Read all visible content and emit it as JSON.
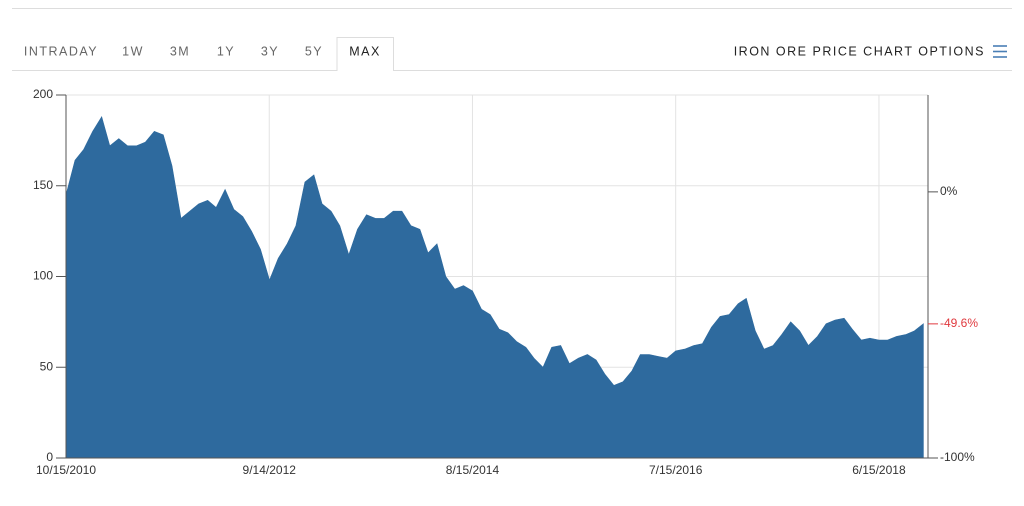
{
  "tabs": [
    "INTRADAY",
    "1W",
    "3M",
    "1Y",
    "3Y",
    "5Y",
    "MAX"
  ],
  "active_tab": 6,
  "options_label": "IRON ORE PRICE CHART OPTIONS",
  "chart_data": {
    "type": "area",
    "color": "#2e6a9e",
    "grid": true,
    "x": [
      "2010-10-15",
      "2010-11-15",
      "2010-12-15",
      "2011-01-15",
      "2011-02-15",
      "2011-03-15",
      "2011-04-15",
      "2011-05-15",
      "2011-06-15",
      "2011-07-15",
      "2011-08-15",
      "2011-09-15",
      "2011-10-15",
      "2011-11-15",
      "2011-12-15",
      "2012-01-15",
      "2012-02-15",
      "2012-03-15",
      "2012-04-15",
      "2012-05-15",
      "2012-06-15",
      "2012-07-15",
      "2012-08-15",
      "2012-09-15",
      "2012-10-15",
      "2012-11-15",
      "2012-12-15",
      "2013-01-15",
      "2013-02-15",
      "2013-03-15",
      "2013-04-15",
      "2013-05-15",
      "2013-06-15",
      "2013-07-15",
      "2013-08-15",
      "2013-09-15",
      "2013-10-15",
      "2013-11-15",
      "2013-12-15",
      "2014-01-15",
      "2014-02-15",
      "2014-03-15",
      "2014-04-15",
      "2014-05-15",
      "2014-06-15",
      "2014-07-15",
      "2014-08-15",
      "2014-09-15",
      "2014-10-15",
      "2014-11-15",
      "2014-12-15",
      "2015-01-15",
      "2015-02-15",
      "2015-03-15",
      "2015-04-15",
      "2015-05-15",
      "2015-06-15",
      "2015-07-15",
      "2015-08-15",
      "2015-09-15",
      "2015-10-15",
      "2015-11-15",
      "2015-12-15",
      "2016-01-15",
      "2016-02-15",
      "2016-03-15",
      "2016-04-15",
      "2016-05-15",
      "2016-06-15",
      "2016-07-15",
      "2016-08-15",
      "2016-09-15",
      "2016-10-15",
      "2016-11-15",
      "2016-12-15",
      "2017-01-15",
      "2017-02-15",
      "2017-03-15",
      "2017-04-15",
      "2017-05-15",
      "2017-06-15",
      "2017-07-15",
      "2017-08-15",
      "2017-09-15",
      "2017-10-15",
      "2017-11-15",
      "2017-12-15",
      "2018-01-15",
      "2018-02-15",
      "2018-03-15",
      "2018-04-15",
      "2018-05-15",
      "2018-06-15",
      "2018-07-15",
      "2018-08-15",
      "2018-09-15",
      "2018-10-15",
      "2018-11-15"
    ],
    "values": [
      145,
      164,
      170,
      180,
      188,
      172,
      176,
      172,
      172,
      174,
      180,
      178,
      161,
      132,
      136,
      140,
      142,
      138,
      148,
      137,
      133,
      125,
      115,
      98,
      110,
      118,
      128,
      152,
      156,
      140,
      136,
      128,
      112,
      126,
      134,
      132,
      132,
      136,
      136,
      128,
      126,
      113,
      118,
      100,
      93,
      95,
      92,
      82,
      79,
      71,
      69,
      64,
      61,
      55,
      50,
      61,
      62,
      52,
      55,
      57,
      54,
      46,
      40,
      42,
      48,
      57,
      57,
      56,
      55,
      59,
      60,
      62,
      63,
      72,
      78,
      79,
      85,
      88,
      70,
      60,
      62,
      68,
      75,
      70,
      62,
      67,
      74,
      76,
      77,
      71,
      65,
      66,
      65,
      65,
      67,
      68,
      70,
      74
    ],
    "xlim": [
      "2010-10-15",
      "2018-12-01"
    ],
    "xticks": [
      {
        "value": "2010-10-15",
        "label": "10/15/2010"
      },
      {
        "value": "2012-09-14",
        "label": "9/14/2012"
      },
      {
        "value": "2014-08-15",
        "label": "8/15/2014"
      },
      {
        "value": "2016-07-15",
        "label": "7/15/2016"
      },
      {
        "value": "2018-06-15",
        "label": "6/15/2018"
      }
    ],
    "ylim": [
      0,
      200
    ],
    "yticks": [
      0,
      50,
      100,
      150,
      200
    ],
    "y2lim": [
      -100,
      36.4
    ],
    "y2ticks": [
      {
        "value": -100,
        "label": "-100%"
      },
      {
        "value": 0,
        "label": "0%"
      }
    ],
    "last_change": {
      "value": -49.6,
      "label": "-49.6%",
      "color": "#e0393e"
    }
  }
}
